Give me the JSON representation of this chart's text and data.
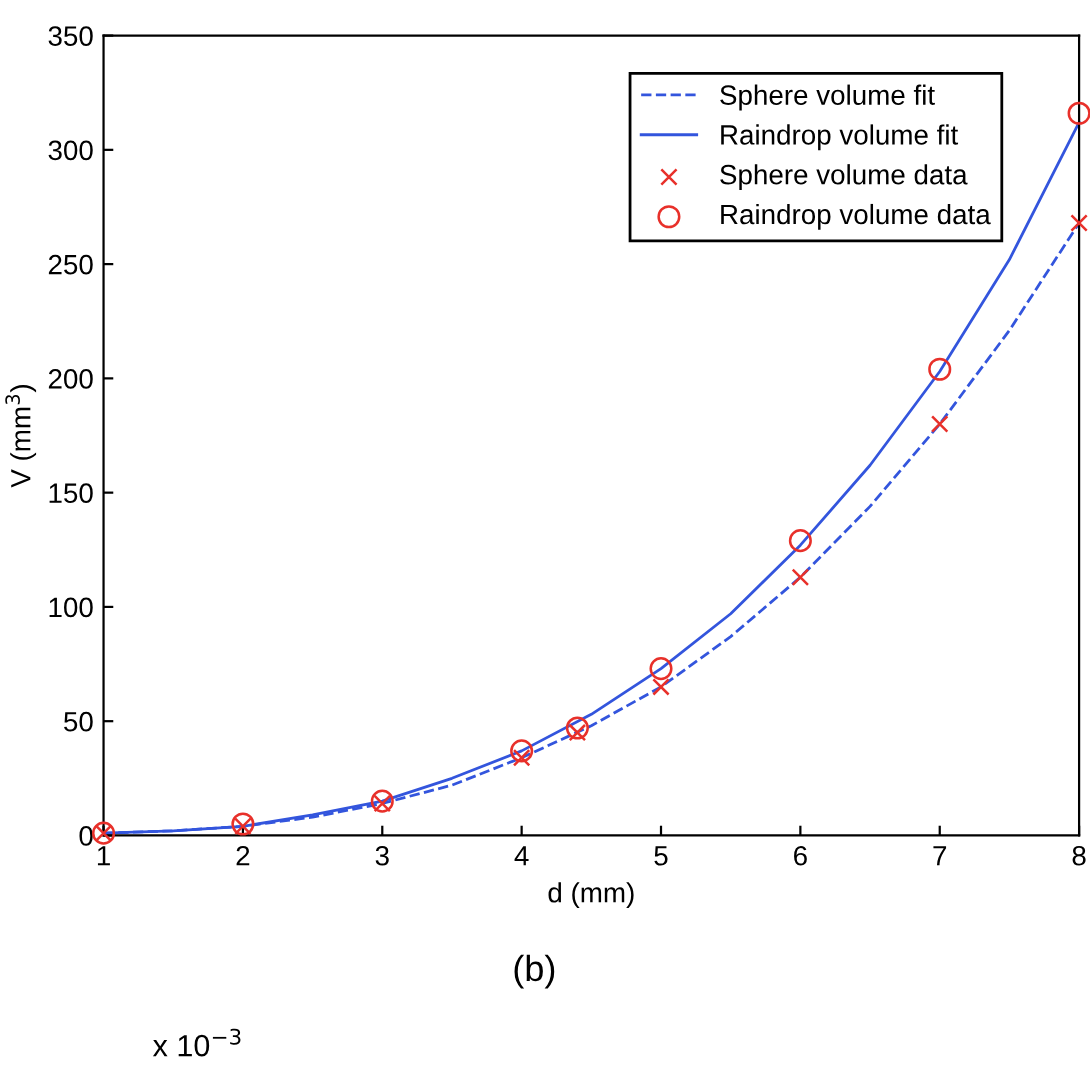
{
  "chart_data": {
    "type": "line",
    "xlabel": "d (mm)",
    "ylabel": "V (mm$^{3}$)",
    "xlim": [
      1,
      8
    ],
    "ylim": [
      0,
      350
    ],
    "xticks": [
      1,
      2,
      3,
      4,
      5,
      6,
      7,
      8
    ],
    "yticks": [
      0,
      50,
      100,
      150,
      200,
      250,
      300,
      350
    ],
    "legend": "top right",
    "grid": false,
    "series": [
      {
        "name": "Sphere volume fit",
        "line_style": "dashed",
        "marker": "none",
        "color": "#3355dd",
        "x": [
          1,
          1.5,
          2,
          2.5,
          3,
          3.5,
          4,
          4.5,
          5,
          5.5,
          6,
          6.5,
          7,
          7.5,
          8
        ],
        "values": [
          1,
          2,
          4,
          8,
          14,
          22,
          34,
          48,
          65,
          87,
          113,
          144,
          180,
          221,
          268
        ]
      },
      {
        "name": "Raindrop volume fit",
        "line_style": "solid",
        "marker": "none",
        "color": "#3355dd",
        "x": [
          1,
          1.5,
          2,
          2.5,
          3,
          3.5,
          4,
          4.5,
          5,
          5.5,
          6,
          6.5,
          7,
          7.5,
          8
        ],
        "values": [
          1,
          2,
          4,
          9,
          15,
          25,
          37,
          53,
          73,
          97,
          127,
          162,
          203,
          252,
          312
        ]
      },
      {
        "name": "Sphere volume data",
        "type": "scatter",
        "marker": "cross",
        "color": "#e8302a",
        "x": [
          1,
          2,
          3,
          4,
          4.4,
          5,
          6,
          7,
          8
        ],
        "values": [
          1,
          4,
          14,
          34,
          45,
          65,
          113,
          180,
          268
        ]
      },
      {
        "name": "Raindrop volume data",
        "type": "scatter",
        "marker": "circle",
        "color": "#e8302a",
        "x": [
          1,
          2,
          3,
          4,
          4.4,
          5,
          6,
          7,
          8
        ],
        "values": [
          1,
          5,
          15,
          37,
          47,
          73,
          129,
          204,
          316
        ]
      }
    ],
    "annotations": [
      "(b)",
      "x 10$^{−3}$"
    ]
  }
}
